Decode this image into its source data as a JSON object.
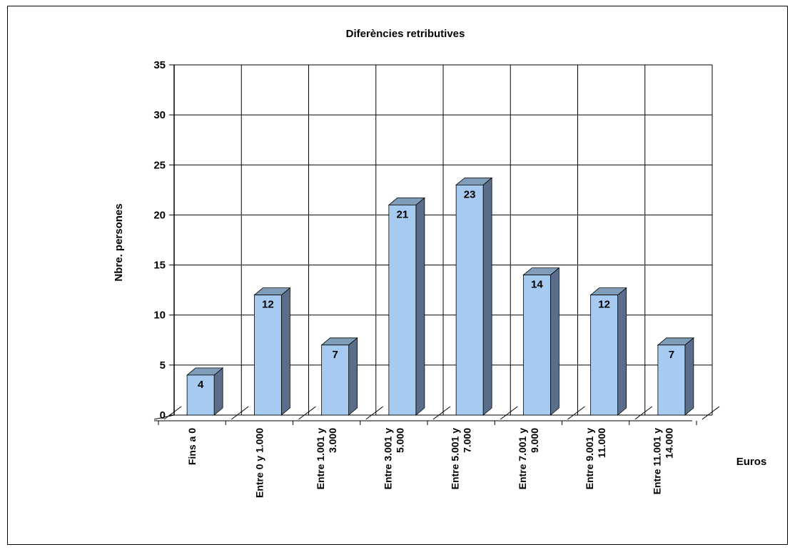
{
  "chart_data": {
    "type": "bar",
    "title": "Diferències retributives",
    "xlabel": "Euros",
    "ylabel": "Nbre. persones",
    "categories": [
      [
        "Fins a 0"
      ],
      [
        "Entre 0 y 1.000"
      ],
      [
        "Entre 1.001 y",
        "3.000"
      ],
      [
        "Entre 3.001 y",
        "5.000"
      ],
      [
        "Entre 5.001 y",
        "7.000"
      ],
      [
        "Entre 7.001 y",
        "9.000"
      ],
      [
        "Entre 9.001 y",
        "11.000"
      ],
      [
        "Entre 11.001 y",
        "14.000"
      ]
    ],
    "values": [
      4,
      12,
      7,
      21,
      23,
      14,
      12,
      7
    ],
    "ylim": [
      0,
      35
    ],
    "yticks": [
      0,
      5,
      10,
      15,
      20,
      25,
      30,
      35
    ],
    "grid": true,
    "bar_3d": true,
    "colors": {
      "bar_front": "#A6CAF0",
      "bar_top": "#7F9DB9",
      "bar_side": "#5A6E8C",
      "grid": "#000000"
    }
  }
}
